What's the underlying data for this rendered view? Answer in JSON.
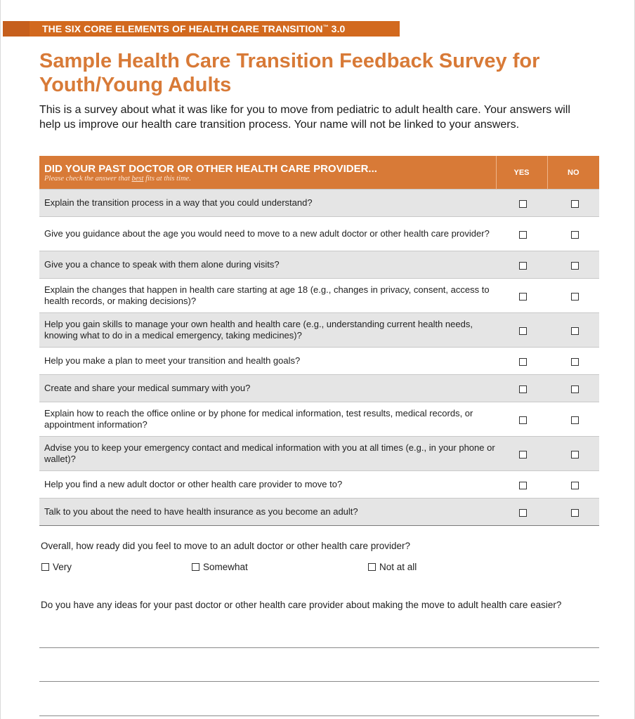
{
  "header": {
    "series": "THE SIX CORE ELEMENTS OF HEALTH CARE TRANSITION",
    "series_tm": "™",
    "series_version": " 3.0",
    "title": "Sample Health Care Transition Feedback Survey for Youth/Young Adults",
    "intro": "This is a survey about what it was like for you to move from pediatric to adult health care. Your answers will help us improve our health care transition process. Your name will not be linked to your answers."
  },
  "table": {
    "heading": "DID YOUR PAST DOCTOR OR OTHER HEALTH CARE PROVIDER...",
    "note_before": "Please check the answer that ",
    "note_emphasis": "best",
    "note_after": " fits at this time.",
    "col_yes": "YES",
    "col_no": "NO",
    "rows": [
      {
        "question": "Explain the transition process in a way that you could understand?",
        "yes": false,
        "no": false
      },
      {
        "question": "Give you guidance about the age you would need to move to a new adult doctor or other health care provider?",
        "yes": false,
        "no": false
      },
      {
        "question": "Give you a chance to speak with them alone during visits?",
        "yes": false,
        "no": false
      },
      {
        "question": "Explain the changes that happen in health care starting at age 18 (e.g., changes in privacy, consent, access to health records, or making decisions)?",
        "yes": false,
        "no": false
      },
      {
        "question": "Help you gain skills to manage your own health and health care (e.g., understanding current health needs, knowing what to do in a medical emergency, taking medicines)?",
        "yes": false,
        "no": false
      },
      {
        "question": "Help you make a plan to meet your transition and health goals?",
        "yes": false,
        "no": false
      },
      {
        "question": "Create and share your medical summary with you?",
        "yes": false,
        "no": false
      },
      {
        "question": "Explain how to reach the office online or by phone for medical information, test results, medical records, or appointment information?",
        "yes": false,
        "no": false
      },
      {
        "question": "Advise you to keep your emergency contact and medical information with you at all times (e.g., in your phone or wallet)?",
        "yes": false,
        "no": false
      },
      {
        "question": "Help you find a new adult doctor or other health care provider to move to?",
        "yes": false,
        "no": false
      },
      {
        "question": "Talk to you about the need to have health insurance as you become an adult?",
        "yes": false,
        "no": false
      }
    ]
  },
  "readiness": {
    "question": "Overall, how ready did you feel to move to an adult doctor or other health care provider?",
    "options": [
      {
        "label": "Very",
        "checked": false
      },
      {
        "label": "Somewhat",
        "checked": false
      },
      {
        "label": "Not at all",
        "checked": false
      }
    ]
  },
  "ideas": {
    "question": "Do you have any ideas for your past doctor or other health care provider about making the move to adult health care easier?",
    "answer_lines": [
      "",
      "",
      ""
    ]
  },
  "colors": {
    "accent": "#d87a37",
    "banner": "#d2691e",
    "row_shade": "#e5e5e5"
  }
}
